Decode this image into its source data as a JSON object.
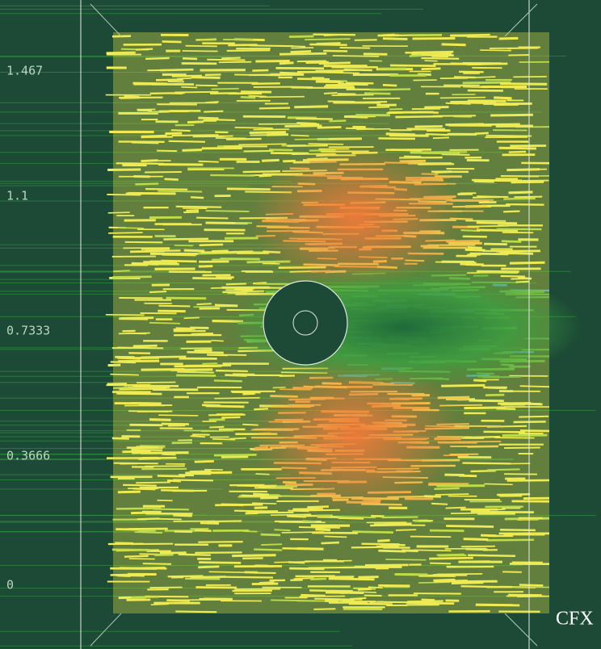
{
  "legend": {
    "labels": [
      "1.467",
      "1.1",
      "0.7333",
      "0.3666",
      "0"
    ]
  },
  "logo": "CFX"
}
